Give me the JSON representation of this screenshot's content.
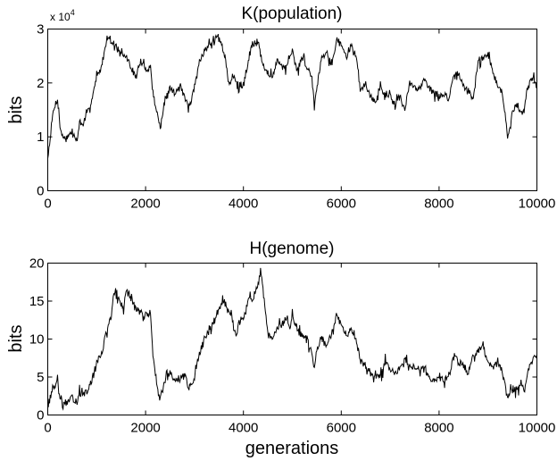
{
  "chart_data": [
    {
      "type": "line",
      "title": "K(population)",
      "xlabel": "",
      "ylabel": "bits",
      "y_multiplier": "x 10^4",
      "y_multiplier_base": "x 10",
      "y_multiplier_exp": "4",
      "xlim": [
        0,
        10000
      ],
      "ylim": [
        0,
        3
      ],
      "xticks": [
        "0",
        "2000",
        "4000",
        "6000",
        "8000",
        "10000"
      ],
      "yticks": [
        "0",
        "1",
        "2",
        "3"
      ],
      "grid": false,
      "series": [
        {
          "name": "K(population)",
          "color": "#000000",
          "x": [
            0,
            50,
            100,
            150,
            200,
            250,
            300,
            400,
            500,
            600,
            650,
            700,
            800,
            900,
            1000,
            1100,
            1200,
            1250,
            1300,
            1400,
            1500,
            1600,
            1700,
            1800,
            1900,
            2000,
            2100,
            2150,
            2250,
            2300,
            2400,
            2500,
            2600,
            2700,
            2800,
            2900,
            3000,
            3100,
            3200,
            3300,
            3400,
            3450,
            3600,
            3700,
            3800,
            3900,
            4000,
            4100,
            4150,
            4300,
            4400,
            4500,
            4600,
            4700,
            4800,
            4900,
            5000,
            5100,
            5200,
            5300,
            5400,
            5450,
            5600,
            5700,
            5800,
            5900,
            6000,
            6100,
            6200,
            6300,
            6400,
            6500,
            6600,
            6700,
            6800,
            6900,
            7000,
            7100,
            7200,
            7300,
            7400,
            7500,
            7600,
            7700,
            7800,
            7900,
            8000,
            8100,
            8200,
            8300,
            8400,
            8500,
            8600,
            8700,
            8800,
            8900,
            9000,
            9100,
            9200,
            9300,
            9400,
            9450,
            9500,
            9600,
            9700,
            9800,
            9900,
            10000
          ],
          "values": [
            0.6,
            1.0,
            1.4,
            1.6,
            1.7,
            1.2,
            1.0,
            1.0,
            1.1,
            0.9,
            1.3,
            1.2,
            1.4,
            1.7,
            2.1,
            2.3,
            2.8,
            2.9,
            2.75,
            2.7,
            2.5,
            2.5,
            2.3,
            2.1,
            2.4,
            2.25,
            2.3,
            1.8,
            1.4,
            1.15,
            1.7,
            1.9,
            1.8,
            2.0,
            1.7,
            1.55,
            1.9,
            2.4,
            2.6,
            2.7,
            2.75,
            2.9,
            2.6,
            2.0,
            2.15,
            1.85,
            2.0,
            2.4,
            2.7,
            2.75,
            2.3,
            2.2,
            2.1,
            2.45,
            2.3,
            2.3,
            2.6,
            2.2,
            2.5,
            2.3,
            2.1,
            1.6,
            2.5,
            2.6,
            2.3,
            2.8,
            2.7,
            2.5,
            2.7,
            2.5,
            1.9,
            1.95,
            1.8,
            1.6,
            2.0,
            1.7,
            1.8,
            1.6,
            1.75,
            1.5,
            2.0,
            1.9,
            1.9,
            2.1,
            1.9,
            1.8,
            1.75,
            1.8,
            1.7,
            2.1,
            2.2,
            1.9,
            1.85,
            1.7,
            2.4,
            2.45,
            2.55,
            2.2,
            1.95,
            1.8,
            1.0,
            1.2,
            1.5,
            1.6,
            1.4,
            1.85,
            2.1,
            2.0
          ]
        }
      ]
    },
    {
      "type": "line",
      "title": "H(genome)",
      "xlabel": "generations",
      "ylabel": "bits",
      "xlim": [
        0,
        10000
      ],
      "ylim": [
        0,
        20
      ],
      "xticks": [
        "0",
        "2000",
        "4000",
        "6000",
        "8000",
        "10000"
      ],
      "yticks": [
        "0",
        "5",
        "10",
        "15",
        "20"
      ],
      "grid": false,
      "series": [
        {
          "name": "H(genome)",
          "color": "#000000",
          "x": [
            0,
            100,
            200,
            250,
            300,
            400,
            500,
            600,
            650,
            700,
            800,
            900,
            1000,
            1100,
            1200,
            1300,
            1350,
            1400,
            1500,
            1550,
            1600,
            1700,
            1800,
            1900,
            2000,
            2100,
            2150,
            2250,
            2300,
            2400,
            2500,
            2600,
            2700,
            2800,
            2850,
            2900,
            3000,
            3100,
            3200,
            3300,
            3400,
            3500,
            3600,
            3650,
            3750,
            3800,
            3850,
            3900,
            4000,
            4100,
            4200,
            4300,
            4350,
            4400,
            4500,
            4600,
            4700,
            4800,
            4900,
            4950,
            5000,
            5100,
            5200,
            5300,
            5400,
            5450,
            5500,
            5600,
            5700,
            5800,
            5900,
            6000,
            6100,
            6200,
            6300,
            6400,
            6500,
            6600,
            6700,
            6800,
            6900,
            7000,
            7100,
            7200,
            7300,
            7400,
            7500,
            7600,
            7700,
            7800,
            7900,
            8000,
            8100,
            8200,
            8300,
            8400,
            8500,
            8600,
            8700,
            8800,
            8900,
            9000,
            9100,
            9200,
            9300,
            9400,
            9450,
            9500,
            9600,
            9700,
            9750,
            9800,
            9900,
            10000
          ],
          "values": [
            1,
            3.5,
            4.2,
            2,
            1.5,
            1.7,
            2.2,
            1.8,
            3,
            2.5,
            3,
            4.5,
            7,
            8,
            11,
            13,
            16,
            15.5,
            15,
            13.5,
            16.5,
            15.5,
            14,
            13.5,
            13,
            13.5,
            8,
            3,
            2,
            4.5,
            5.5,
            4.5,
            5,
            5.5,
            4,
            3.5,
            5,
            8,
            10,
            11,
            12.5,
            14,
            15,
            14,
            13.5,
            12,
            10,
            12,
            13,
            15,
            15.5,
            17,
            19,
            16.5,
            10.5,
            10,
            11.5,
            12,
            13,
            11,
            13.5,
            11,
            10.5,
            10,
            8,
            6,
            8.5,
            10,
            9,
            10.5,
            13,
            12,
            10.5,
            11.5,
            10,
            7,
            6.5,
            5.5,
            5,
            5,
            7,
            6,
            5.5,
            6,
            7.5,
            6.5,
            6.5,
            6,
            6.5,
            5,
            4.5,
            5,
            4.5,
            5,
            8,
            7,
            6.5,
            5.5,
            8,
            8.5,
            9,
            7,
            6,
            7,
            5.5,
            2,
            3,
            3,
            3.5,
            4,
            3,
            5.5,
            7,
            8
          ]
        }
      ]
    }
  ]
}
